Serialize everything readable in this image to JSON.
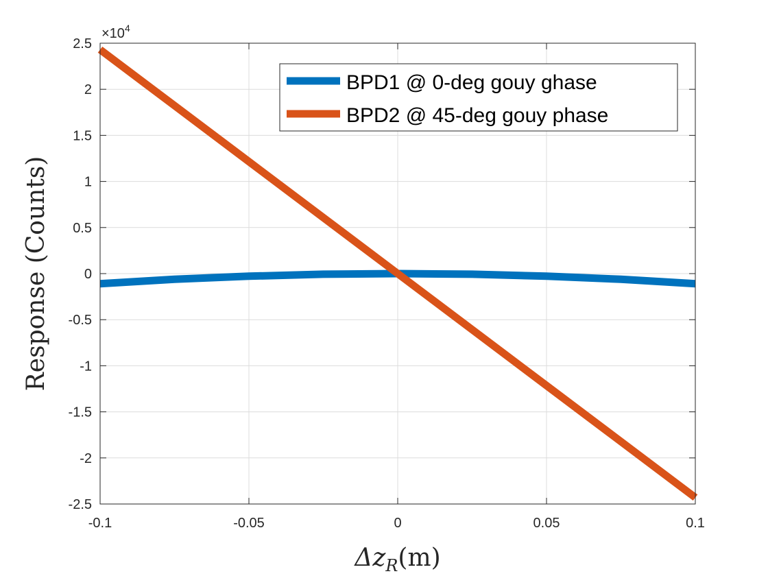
{
  "chart_data": {
    "type": "line",
    "xlabel": {
      "prefix": "Δz",
      "sub": "R",
      "suffix": "(m)"
    },
    "ylabel": "Response (Counts)",
    "y_exponent": {
      "base": "×10",
      "power": "4"
    },
    "xlim": [
      -0.1,
      0.1
    ],
    "ylim": [
      -2.5,
      2.5
    ],
    "x_ticks": [
      -0.1,
      -0.05,
      0,
      0.05,
      0.1
    ],
    "x_tick_labels": [
      "-0.1",
      "-0.05",
      "0",
      "0.05",
      "0.1"
    ],
    "y_ticks": [
      2.5,
      2,
      1.5,
      1,
      0.5,
      0,
      -0.5,
      -1,
      -1.5,
      -2,
      -2.5
    ],
    "y_tick_labels": [
      "2.5",
      "2",
      "1.5",
      "1",
      "0.5",
      "0",
      "-0.5",
      "-1",
      "-1.5",
      "-2",
      "-2.5"
    ],
    "grid": true,
    "legend_position": "top-right",
    "series": [
      {
        "name": "BPD1 @ 0-deg gouy ghase",
        "color": "#0072BD",
        "x": [
          -0.1,
          -0.075,
          -0.05,
          -0.025,
          0,
          0.025,
          0.05,
          0.075,
          0.1
        ],
        "y": [
          -0.11,
          -0.062,
          -0.028,
          -0.007,
          0.0,
          -0.007,
          -0.028,
          -0.062,
          -0.11
        ]
      },
      {
        "name": "BPD2 @ 45-deg gouy phase",
        "color": "#D95319",
        "x": [
          -0.1,
          -0.05,
          0,
          0.05,
          0.1
        ],
        "y": [
          2.43,
          1.215,
          0.0,
          -1.215,
          -2.43
        ]
      }
    ]
  }
}
